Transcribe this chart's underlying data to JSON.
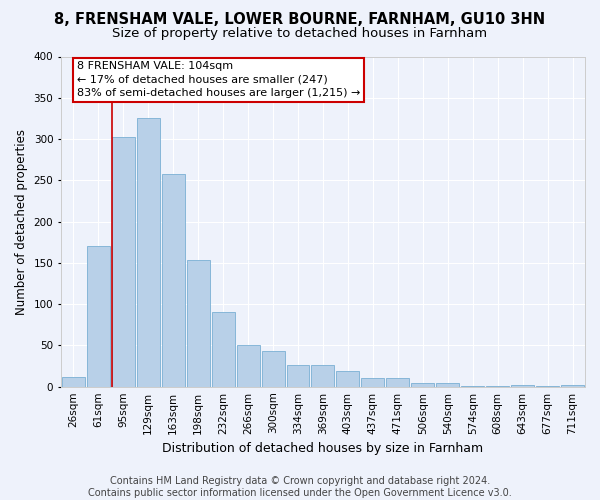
{
  "title_line1": "8, FRENSHAM VALE, LOWER BOURNE, FARNHAM, GU10 3HN",
  "title_line2": "Size of property relative to detached houses in Farnham",
  "xlabel": "Distribution of detached houses by size in Farnham",
  "ylabel": "Number of detached properties",
  "bar_labels": [
    "26sqm",
    "61sqm",
    "95sqm",
    "129sqm",
    "163sqm",
    "198sqm",
    "232sqm",
    "266sqm",
    "300sqm",
    "334sqm",
    "369sqm",
    "403sqm",
    "437sqm",
    "471sqm",
    "506sqm",
    "540sqm",
    "574sqm",
    "608sqm",
    "643sqm",
    "677sqm",
    "711sqm"
  ],
  "bar_values": [
    12,
    170,
    302,
    326,
    258,
    153,
    91,
    50,
    43,
    26,
    26,
    19,
    10,
    10,
    4,
    4,
    1,
    1,
    2,
    1,
    2
  ],
  "bar_color": "#b8d0e8",
  "bar_edgecolor": "#7aafd4",
  "vline_color": "#cc0000",
  "vline_x_index": 2,
  "annotation_line1": "8 FRENSHAM VALE: 104sqm",
  "annotation_line2": "← 17% of detached houses are smaller (247)",
  "annotation_line3": "83% of semi-detached houses are larger (1,215) →",
  "annotation_box_facecolor": "white",
  "annotation_box_edgecolor": "#cc0000",
  "ylim": [
    0,
    400
  ],
  "yticks": [
    0,
    50,
    100,
    150,
    200,
    250,
    300,
    350,
    400
  ],
  "footer_text": "Contains HM Land Registry data © Crown copyright and database right 2024.\nContains public sector information licensed under the Open Government Licence v3.0.",
  "bg_color": "#eef2fb",
  "grid_color": "white",
  "title_fontsize": 10.5,
  "subtitle_fontsize": 9.5,
  "ylabel_fontsize": 8.5,
  "xlabel_fontsize": 9,
  "tick_fontsize": 7.5,
  "annot_fontsize": 8,
  "footer_fontsize": 7
}
